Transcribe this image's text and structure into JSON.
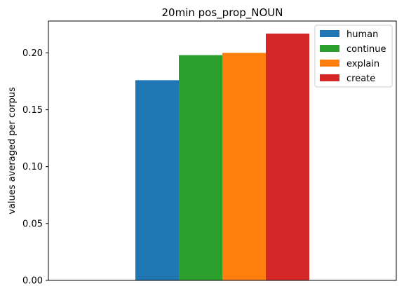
{
  "chart_data": {
    "type": "bar",
    "title": "20min pos_prop_NOUN",
    "xlabel": "",
    "ylabel": "values averaged per corpus",
    "ylim": [
      0,
      0.228
    ],
    "yticks": [
      0.0,
      0.05,
      0.1,
      0.15,
      0.2
    ],
    "ytick_labels": [
      "0.00",
      "0.05",
      "0.10",
      "0.15",
      "0.20"
    ],
    "grid": false,
    "legend_position": "top-right",
    "series": [
      {
        "name": "human",
        "value": 0.176,
        "color": "#1f77b4"
      },
      {
        "name": "continue",
        "value": 0.198,
        "color": "#2ca02c"
      },
      {
        "name": "explain",
        "value": 0.2,
        "color": "#ff7f0e"
      },
      {
        "name": "create",
        "value": 0.217,
        "color": "#d62728"
      }
    ]
  }
}
